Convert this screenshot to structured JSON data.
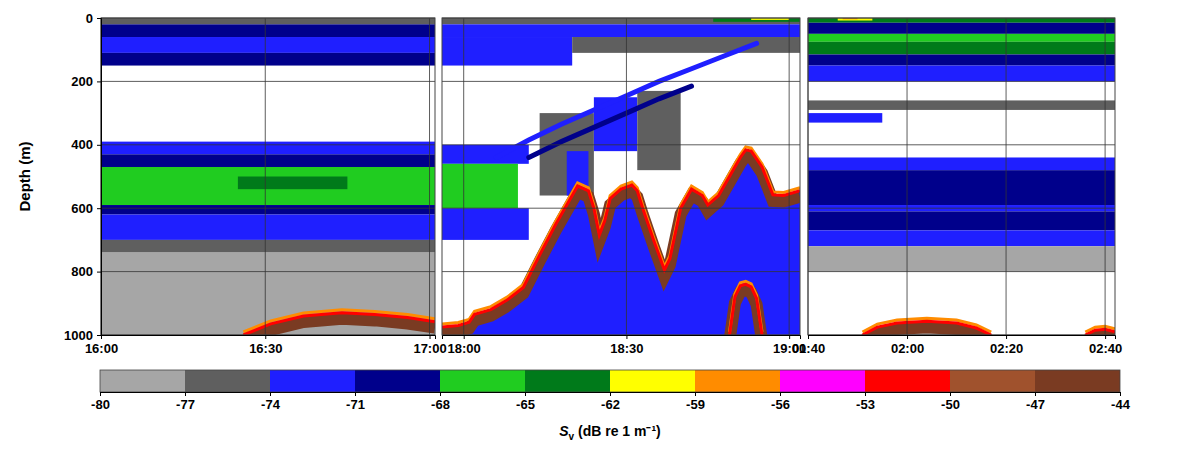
{
  "chart_data": {
    "type": "echogram",
    "ylabel": "Depth (m)",
    "ylim": [
      0,
      1000
    ],
    "yticks": [
      0,
      200,
      400,
      600,
      800,
      1000
    ],
    "grid": true,
    "colorbar": {
      "label": "Sv (dB re 1 m⁻¹)",
      "range": [
        -80,
        -44
      ],
      "ticks": [
        -80,
        -77,
        -74,
        -71,
        -68,
        -65,
        -62,
        -59,
        -56,
        -53,
        -50,
        -47,
        -44
      ],
      "colors": [
        "#a6a6a6",
        "#5f5f5f",
        "#1f1fff",
        "#00008b",
        "#20cc20",
        "#007a1a",
        "#ffff00",
        "#ff8c00",
        "#ff00ff",
        "#ff0000",
        "#a0522d",
        "#7a3b22"
      ]
    },
    "panels": [
      {
        "xlim": [
          960,
          1021
        ],
        "xticks": [
          {
            "value": 960,
            "label": "16:00"
          },
          {
            "value": 990,
            "label": "16:30"
          },
          {
            "value": 1020,
            "label": "17:00"
          }
        ],
        "layers": [
          {
            "t": [
              960,
              1021
            ],
            "depth": [
              0,
              20
            ],
            "sv": -75.5
          },
          {
            "t": [
              960,
              1021
            ],
            "depth": [
              20,
              60
            ],
            "sv": -69.5
          },
          {
            "t": [
              960,
              1021
            ],
            "depth": [
              60,
              110
            ],
            "sv": -72.5
          },
          {
            "t": [
              960,
              1021
            ],
            "depth": [
              110,
              150
            ],
            "sv": -69.5
          },
          {
            "t": [
              960,
              1021
            ],
            "depth": [
              390,
              430
            ],
            "sv": -72.5
          },
          {
            "t": [
              960,
              1021
            ],
            "depth": [
              430,
              470
            ],
            "sv": -69.5
          },
          {
            "t": [
              960,
              1021
            ],
            "depth": [
              470,
              590
            ],
            "sv": -66.5
          },
          {
            "t": [
              985,
              1005
            ],
            "depth": [
              500,
              540
            ],
            "sv": -63.5
          },
          {
            "t": [
              960,
              1021
            ],
            "depth": [
              590,
              620
            ],
            "sv": -69.5
          },
          {
            "t": [
              960,
              1021
            ],
            "depth": [
              620,
              700
            ],
            "sv": -72.5
          },
          {
            "t": [
              960,
              1021
            ],
            "depth": [
              700,
              740
            ],
            "sv": -75.5
          },
          {
            "t": [
              960,
              1021
            ],
            "depth": [
              740,
              1000
            ],
            "sv": -78.5
          }
        ],
        "lines": [],
        "seafloor": [
          {
            "x": [
              986,
              991,
              997,
              1004,
              1010,
              1016,
              1021
            ],
            "depth": [
              1000,
              965,
              940,
              930,
              935,
              945,
              958
            ],
            "sv": -46,
            "rim_sv": [
              -57.5,
              -51.5
            ],
            "below_sv": -78.5
          }
        ]
      },
      {
        "xlim": [
          1076,
          1142
        ],
        "xticks": [
          {
            "value": 1080,
            "label": "18:00"
          },
          {
            "value": 1110,
            "label": "18:30"
          },
          {
            "value": 1140,
            "label": "19:00"
          }
        ],
        "layers": [
          {
            "t": [
              1076,
              1142
            ],
            "depth": [
              0,
              20
            ],
            "sv": -75.5
          },
          {
            "t": [
              1076,
              1142
            ],
            "depth": [
              20,
              60
            ],
            "sv": -72.5
          },
          {
            "t": [
              1076,
              1100
            ],
            "depth": [
              60,
              150
            ],
            "sv": -72.5
          },
          {
            "t": [
              1100,
              1142
            ],
            "depth": [
              60,
              110
            ],
            "sv": -75.5
          },
          {
            "t": [
              1076,
              1092
            ],
            "depth": [
              400,
              460
            ],
            "sv": -72.5
          },
          {
            "t": [
              1076,
              1090
            ],
            "depth": [
              460,
              600
            ],
            "sv": -66.5
          },
          {
            "t": [
              1076,
              1092
            ],
            "depth": [
              600,
              700
            ],
            "sv": -72.5
          },
          {
            "t": [
              1094,
              1104
            ],
            "depth": [
              300,
              560
            ],
            "sv": -75.5
          },
          {
            "t": [
              1104,
              1112
            ],
            "depth": [
              250,
              420
            ],
            "sv": -72.5
          },
          {
            "t": [
              1112,
              1120
            ],
            "depth": [
              230,
              480
            ],
            "sv": -75.5
          },
          {
            "t": [
              1099,
              1103
            ],
            "depth": [
              420,
              560
            ],
            "sv": -72.5
          },
          {
            "t": [
              1126,
              1142
            ],
            "depth": [
              0,
              12
            ],
            "sv": -63.5
          },
          {
            "t": [
              1133,
              1140
            ],
            "depth": [
              0,
              6
            ],
            "sv": -60.5
          }
        ],
        "lines": [
          {
            "x": [
              1086,
              1092,
              1098,
              1104,
              1110,
              1116,
              1122,
              1128,
              1134
            ],
            "depth": [
              440,
              385,
              335,
              290,
              245,
              200,
              160,
              120,
              80
            ],
            "sv": -72.5
          },
          {
            "x": [
              1092,
              1098,
              1104,
              1110,
              1116,
              1122
            ],
            "depth": [
              440,
              390,
              345,
              300,
              255,
              215
            ],
            "sv": -69.5
          }
        ],
        "seafloor": [
          {
            "x": [
              1076,
              1079,
              1081,
              1082,
              1085,
              1088,
              1091,
              1094,
              1097,
              1100,
              1101,
              1103,
              1104,
              1105,
              1106,
              1107,
              1109,
              1111,
              1112,
              1113,
              1115,
              1117,
              1118,
              1120,
              1122,
              1124,
              1125,
              1127,
              1129,
              1131,
              1132,
              1133,
              1135,
              1137,
              1139,
              1142
            ],
            "depth": [
              975,
              970,
              960,
              935,
              920,
              890,
              850,
              748,
              650,
              560,
              530,
              545,
              600,
              685,
              640,
              570,
              540,
              527,
              545,
              600,
              700,
              795,
              760,
              600,
              540,
              560,
              590,
              560,
              500,
              440,
              416,
              420,
              470,
              558,
              560,
              545
            ],
            "sv": -46,
            "rim_sv": [
              -57.5,
              -51.5
            ],
            "below_sv": -72.5
          },
          {
            "x": [
              1129,
              1130,
              1131,
              1132,
              1133,
              1134,
              1135
            ],
            "depth": [
              1000,
              880,
              845,
              840,
              848,
              885,
              1000
            ],
            "sv": -46,
            "rim_sv": [
              -57.5,
              -51.5
            ],
            "below_sv": -72.5
          }
        ]
      },
      {
        "xlim": [
          100,
          162
        ],
        "xticks": [
          {
            "value": 100,
            "label": "01:40"
          },
          {
            "value": 120,
            "label": "02:00"
          },
          {
            "value": 140,
            "label": "02:20"
          },
          {
            "value": 160,
            "label": "02:40"
          }
        ],
        "layers": [
          {
            "t": [
              100,
              162
            ],
            "depth": [
              0,
              15
            ],
            "sv": -63.5
          },
          {
            "t": [
              100,
              162
            ],
            "depth": [
              15,
              50
            ],
            "sv": -69.5
          },
          {
            "t": [
              100,
              162
            ],
            "depth": [
              50,
              75
            ],
            "sv": -66.5
          },
          {
            "t": [
              100,
              162
            ],
            "depth": [
              75,
              115
            ],
            "sv": -63.5
          },
          {
            "t": [
              100,
              162
            ],
            "depth": [
              115,
              150
            ],
            "sv": -69.5
          },
          {
            "t": [
              100,
              162
            ],
            "depth": [
              150,
              200
            ],
            "sv": -72.5
          },
          {
            "t": [
              100,
              162
            ],
            "depth": [
              260,
              290
            ],
            "sv": -75.5
          },
          {
            "t": [
              100,
              115
            ],
            "depth": [
              300,
              330
            ],
            "sv": -72.5
          },
          {
            "t": [
              100,
              162
            ],
            "depth": [
              440,
              480
            ],
            "sv": -72.5
          },
          {
            "t": [
              100,
              162
            ],
            "depth": [
              480,
              590
            ],
            "sv": -69.5
          },
          {
            "t": [
              100,
              162
            ],
            "depth": [
              590,
              610
            ],
            "sv": -72.5
          },
          {
            "t": [
              100,
              162
            ],
            "depth": [
              610,
              670
            ],
            "sv": -69.5
          },
          {
            "t": [
              100,
              162
            ],
            "depth": [
              670,
              720
            ],
            "sv": -72.5
          },
          {
            "t": [
              100,
              162
            ],
            "depth": [
              720,
              800
            ],
            "sv": -78.5
          },
          {
            "t": [
              106,
              113
            ],
            "depth": [
              0,
              8
            ],
            "sv": -60.5
          },
          {
            "t": [
              107,
              110
            ],
            "depth": [
              0,
              4
            ],
            "sv": -57.5
          }
        ],
        "lines": [],
        "seafloor": [
          {
            "x": [
              111,
              114,
              118,
              124,
              130,
              134,
              137
            ],
            "depth": [
              1000,
              975,
              962,
              957,
              962,
              978,
              1000
            ],
            "sv": -46,
            "rim_sv": [
              -57.5,
              -51.5
            ],
            "below_sv": -78.5
          },
          {
            "x": [
              156,
              158,
              160,
              162
            ],
            "depth": [
              1000,
              985,
              982,
              990
            ],
            "sv": -46,
            "rim_sv": [
              -57.5,
              -51.5
            ],
            "below_sv": -78.5
          }
        ]
      }
    ]
  }
}
